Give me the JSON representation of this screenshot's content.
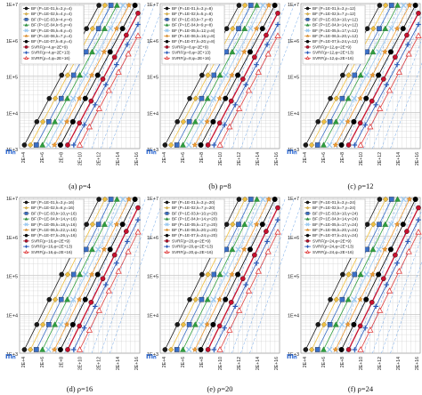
{
  "figure": {
    "top_left_label": "mₙ",
    "ylabels_upper": [
      "1E+7",
      "1E+6",
      "1E+5",
      "1E+4",
      "1E+3"
    ],
    "xticks": [
      "2E+4",
      "2E+6",
      "2E+8",
      "2E+10",
      "2E+12",
      "2E+14",
      "2E+16"
    ]
  },
  "colors": {
    "bf1": "#1a1a1a",
    "bf2": "#f0c040",
    "bf3": "#3a6fc7",
    "bf4": "#2e9e3e",
    "bf5": "#9ac8f0",
    "bf6": "#f29b30",
    "bf7": "#000000",
    "svrf1": "#c8102e",
    "svrf2": "#2858b8",
    "svrf3": "#e04040",
    "grid": "#c8c8c8",
    "dashed": "#6fa6e8"
  },
  "chart_data": [
    {
      "type": "line",
      "caption": "(a)  ρ=4",
      "y_log": true,
      "ylim": [
        1000,
        10000000
      ],
      "legend": [
        "BF (P=1E-01,k=3,γ=4)",
        "BF (P=1E-02,k=4,γ=4)",
        "BF (P=1E-03,k=4,γ=4)",
        "BF (P=1E-04,k=5,γ=4)",
        "BF (P=1E-05,k=6,γ=4)",
        "BF (P=1E-06,k=7,γ=4)",
        "BF (P=1E-07,k=8,γ=4)",
        "SVRF(ρ=4,φ=2E+9)",
        "SVRF(ρ=4,φ=2E+13)",
        "SVRF(ρ=4,φ=2E+16)"
      ]
    },
    {
      "type": "line",
      "caption": "(b)  ρ=8",
      "y_log": true,
      "ylim": [
        1000,
        10000000
      ],
      "legend": [
        "BF (P=1E-01,k=3,γ=8)",
        "BF (P=1E-02,k=5,γ=8)",
        "BF (P=1E-03,k=7,γ=8)",
        "BF (P=1E-04,k=9,γ=8)",
        "BF (P=1E-05,k=12,γ=8)",
        "BF (P=1E-06,k=16,γ=8)",
        "BF (P=1E-07,k=20,γ=8)",
        "SVRF(ρ=8,φ=2E+9)",
        "SVRF(ρ=8,φ=2E+13)",
        "SVRF(ρ=8,φ=2E+16)"
      ]
    },
    {
      "type": "line",
      "caption": "(c)  ρ=12",
      "y_log": true,
      "ylim": [
        1000,
        10000000
      ],
      "legend": [
        "BF (P=1E-01,k=3,γ=12)",
        "BF (P=1E-02,k=7,γ=12)",
        "BF (P=1E-03,k=10,γ=12)",
        "BF (P=1E-04,k=14,γ=12)",
        "BF (P=1E-05,k=17,γ=12)",
        "BF (P=1E-06,k=20,γ=12)",
        "BF (P=1E-07,k=24,γ=12)",
        "SVRF(ρ=12,φ=2E+9)",
        "SVRF(ρ=12,φ=2E+13)",
        "SVRF(ρ=12,φ=2E+16)"
      ]
    },
    {
      "type": "line",
      "caption": "(d)  ρ=16",
      "y_log": true,
      "ylim": [
        1000,
        10000000
      ],
      "legend": [
        "BF (P=1E-01,k=3,γ=16)",
        "BF (P=1E-02,k=6,γ=16)",
        "BF (P=1E-03,k=10,γ=16)",
        "BF (P=1E-04,k=14,γ=16)",
        "BF (P=1E-05,k=18,γ=16)",
        "BF (P=1E-06,k=22,γ=16)",
        "BF (P=1E-07,k=26,γ=16)",
        "SVRF(ρ=16,φ=2E+9)",
        "SVRF(ρ=16,φ=2E+13)",
        "SVRF(ρ=16,φ=2E+16)"
      ]
    },
    {
      "type": "line",
      "caption": "(e)  ρ=20",
      "y_log": true,
      "ylim": [
        1000,
        10000000
      ],
      "legend": [
        "BF (P=1E-01,k=3,γ=20)",
        "BF (P=1E-02,k=7,γ=20)",
        "BF (P=1E-03,k=10,γ=20)",
        "BF (P=1E-04,k=14,γ=20)",
        "BF (P=1E-05,k=17,γ=20)",
        "BF (P=1E-06,k=20,γ=20)",
        "BF (P=1E-07,k=24,γ=20)",
        "SVRF(ρ=20,φ=2E+9)",
        "SVRF(ρ=20,φ=2E+13)",
        "SVRF(ρ=20,φ=2E+16)"
      ]
    },
    {
      "type": "line",
      "caption": "(f)  ρ=24",
      "y_log": true,
      "ylim": [
        1000,
        10000000
      ],
      "legend": [
        "BF (P=1E-01,k=3,γ=24)",
        "BF (P=1E-02,k=7,γ=24)",
        "BF (P=1E-03,k=10,γ=24)",
        "BF (P=1E-04,k=14,γ=24)",
        "BF (P=1E-05,k=17,γ=24)",
        "BF (P=1E-06,k=20,γ=24)",
        "BF (P=1E-07,k=24,γ=24)",
        "SVRF(ρ=24,φ=2E+9)",
        "SVRF(ρ=24,φ=2E+13)",
        "SVRF(ρ=24,φ=2E+16)"
      ]
    }
  ]
}
